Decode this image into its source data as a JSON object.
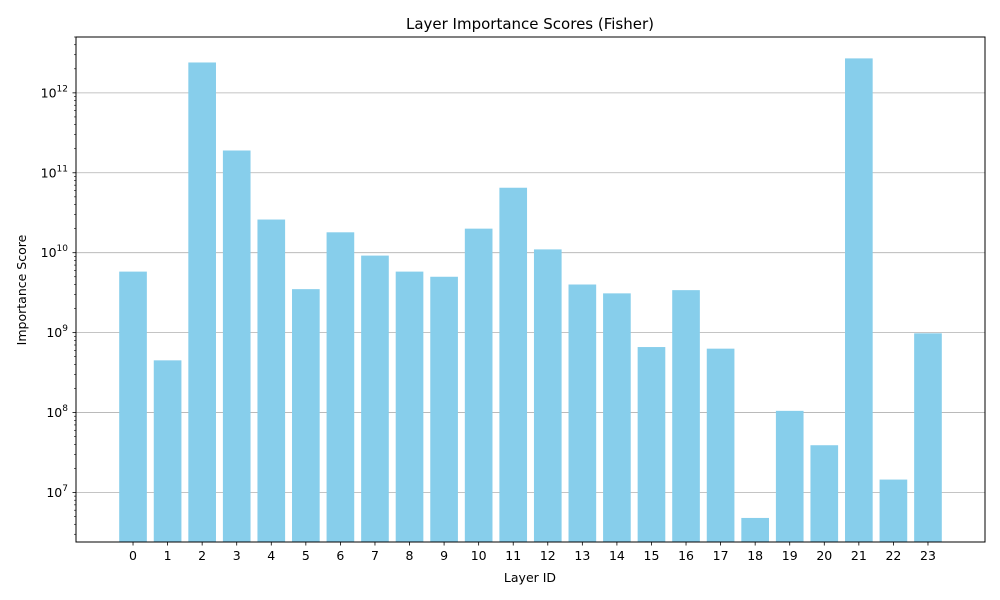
{
  "chart_data": {
    "type": "bar",
    "title": "Layer Importance Scores (Fisher)",
    "xlabel": "Layer ID",
    "ylabel": "Importance Score",
    "yscale": "log",
    "ylim": [
      2400000,
      5000000000000
    ],
    "grid": "y-major",
    "bar_color": "#87CEEB",
    "y_ticks": [
      {
        "value": 10000000,
        "base": "10",
        "exp": "7"
      },
      {
        "value": 100000000,
        "base": "10",
        "exp": "8"
      },
      {
        "value": 1000000000,
        "base": "10",
        "exp": "9"
      },
      {
        "value": 10000000000,
        "base": "10",
        "exp": "10"
      },
      {
        "value": 100000000000,
        "base": "10",
        "exp": "11"
      },
      {
        "value": 1000000000000,
        "base": "10",
        "exp": "12"
      }
    ],
    "categories": [
      "0",
      "1",
      "2",
      "3",
      "4",
      "5",
      "6",
      "7",
      "8",
      "9",
      "10",
      "11",
      "12",
      "13",
      "14",
      "15",
      "16",
      "17",
      "18",
      "19",
      "20",
      "21",
      "22",
      "23"
    ],
    "values": [
      5800000000,
      450000000,
      2400000000000,
      190000000000,
      26000000000,
      3500000000,
      18000000000,
      9200000000,
      5800000000,
      5000000000,
      20000000000,
      65000000000,
      11000000000,
      4000000000,
      3100000000,
      660000000,
      3400000000,
      630000000,
      4800000,
      105000000,
      39000000,
      2700000000000,
      14500000,
      980000000
    ]
  }
}
